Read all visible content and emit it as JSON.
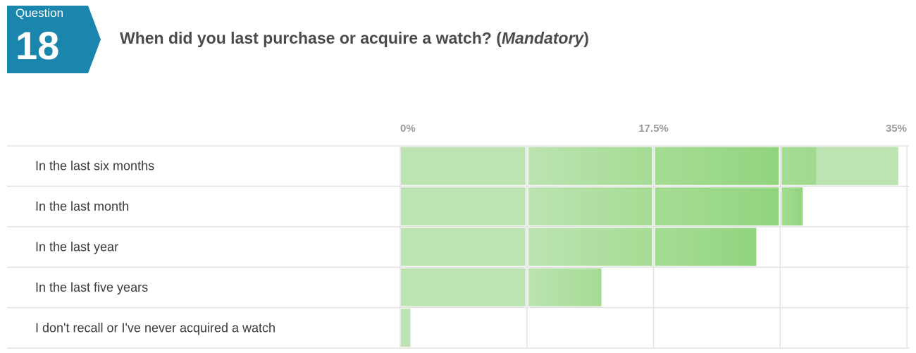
{
  "badge": {
    "label": "Question",
    "number": "18"
  },
  "question": {
    "text": "When did you last purchase or acquire a watch? (",
    "emphasis": "Mandatory",
    "close": ")"
  },
  "colors": {
    "badge": "#1a86ad",
    "bar_light": "#bce3b1",
    "bar_mid": "#a5dc94",
    "bar_dark": "#92d47e",
    "grid": "#e4e4e4"
  },
  "chart_data": {
    "type": "bar",
    "orientation": "horizontal",
    "categories": [
      "In the last six months",
      "In the last month",
      "In the last year",
      "In the last five years",
      "I don't recall or I've never acquired a watch"
    ],
    "values": [
      34.4,
      27.8,
      24.6,
      13.9,
      0.7
    ],
    "unit": "%",
    "xlim": [
      0,
      35
    ],
    "ticks": [
      0,
      17.5,
      35
    ],
    "tick_labels": [
      "0%",
      "17.5%",
      "35%"
    ],
    "grid": true,
    "legend": "none"
  }
}
